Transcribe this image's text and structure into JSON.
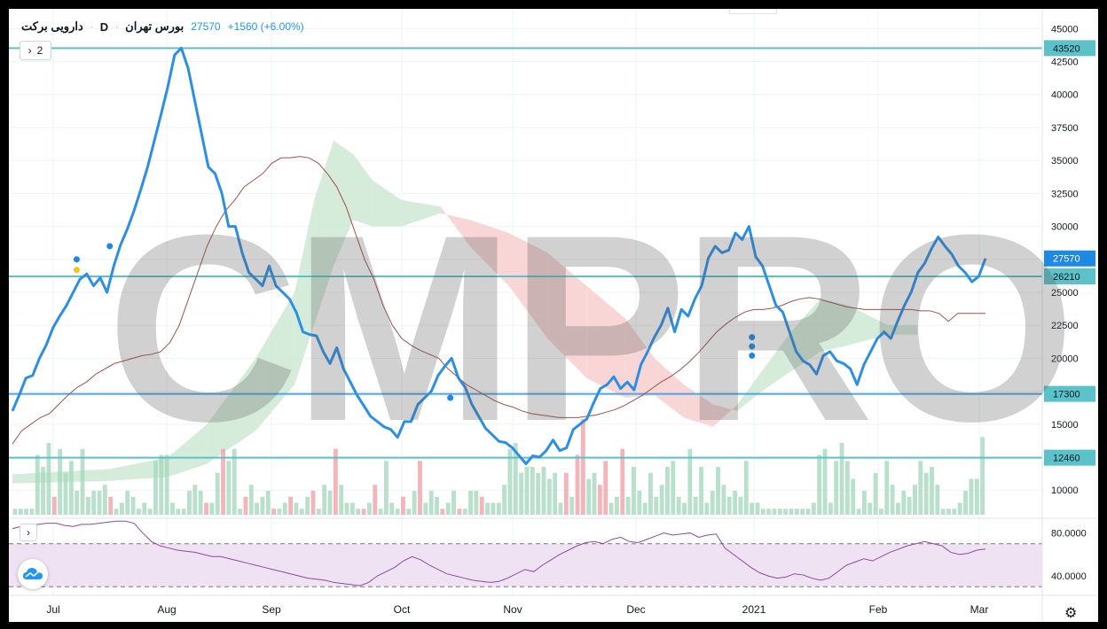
{
  "header": {
    "symbol": "دارویی برکت",
    "interval": "D",
    "exchange": "بورس تهران",
    "price": "27570",
    "change": "+1560 (+6.00%)"
  },
  "collapse_label": "2",
  "watermark": "CMPRO",
  "icons": {
    "collapse": "chevron-right-icon",
    "rsi_toggle": "chevron-right-icon",
    "settings": "gear-icon",
    "logo": "cloud-chart-icon"
  },
  "colors": {
    "price_line": "#2b8fe6",
    "base_line": "#a0524a",
    "cloud_bull": "#cfe9d4",
    "cloud_bear": "#f8cfcf",
    "volume_up": "#a6d8be",
    "volume_down": "#f0a3a8",
    "hline": "#5bc2c9",
    "hline_blue": "#4aa6e8",
    "rsi_line": "#8e4aa0",
    "rsi_band": "#efe3f3",
    "marker_blue": "#1e88e5",
    "marker_yellow": "#f5c518"
  },
  "chart_data": [
    {
      "type": "line",
      "name": "price",
      "ylim": [
        8000,
        46500
      ],
      "y_ticks": [
        10000,
        12500,
        15000,
        17500,
        20000,
        22500,
        25000,
        27500,
        30000,
        32500,
        35000,
        37500,
        40000,
        42500,
        45000
      ],
      "x_ticks": [
        "Jul",
        "Aug",
        "Sep",
        "Oct",
        "Nov",
        "Dec",
        "2021",
        "Feb",
        "Mar"
      ],
      "price_labels": [
        {
          "value": 43520,
          "label": "43520"
        },
        {
          "value": 27570,
          "label": "27570"
        },
        {
          "value": 26210,
          "label": "26210"
        },
        {
          "value": 17300,
          "label": "17300"
        },
        {
          "value": 12460,
          "label": "12460"
        }
      ],
      "horizontal_levels": [
        43520,
        26210,
        17300,
        12460
      ],
      "series": [
        {
          "values": [
            16000,
            17200,
            18500,
            18700,
            20000,
            21000,
            22300,
            23200,
            24000,
            25000,
            26000,
            26400,
            25500,
            26100,
            25000,
            27000,
            28600,
            29800,
            31200,
            32800,
            34500,
            36500,
            38500,
            40600,
            43000,
            43520,
            42000,
            39500,
            37000,
            34500,
            34000,
            32500,
            30000,
            30000,
            28000,
            26500,
            26000,
            25500,
            27000,
            25500,
            25000,
            24500,
            23500,
            22000,
            21800,
            21700,
            20500,
            19600,
            20800,
            19200,
            18200,
            17200,
            16400,
            15600,
            15200,
            14800,
            14600,
            14000,
            15200,
            15200,
            16500,
            17000,
            17500,
            18700,
            19400,
            20000,
            18500,
            17800,
            16500,
            15600,
            14700,
            14200,
            13700,
            13600,
            13200,
            12600,
            12000,
            12600,
            12500,
            13000,
            13800,
            13000,
            13200,
            14600,
            15000,
            15400,
            16600,
            17700,
            18000,
            18600,
            17700,
            18200,
            17600,
            19500,
            20500,
            21600,
            22500,
            23800,
            22000,
            23700,
            23200,
            24500,
            25500,
            27600,
            28500,
            28000,
            28200,
            29500,
            29000,
            30000,
            27700,
            27000,
            25500,
            24000,
            23500,
            22000,
            20500,
            19800,
            19500,
            18800,
            20200,
            20500,
            19800,
            19600,
            19200,
            18000,
            19500,
            20500,
            21500,
            22000,
            21500,
            22800,
            24000,
            25000,
            26500,
            27200,
            28300,
            29200,
            28500,
            27900,
            27000,
            26500,
            25800,
            26210,
            27570
          ]
        },
        {
          "name": "",
          "values": [
            13500,
            14500,
            15000,
            15500,
            15800,
            16500,
            17200,
            17800,
            18200,
            18800,
            19200,
            19600,
            19800,
            20000,
            20200,
            20300,
            20500,
            21200,
            22500,
            24500,
            26500,
            28500,
            30000,
            31200,
            32000,
            33000,
            33500,
            34000,
            34800,
            35200,
            35200,
            35300,
            35200,
            34800,
            34000,
            33000,
            31500,
            29500,
            27500,
            26000,
            24000,
            22500,
            21500,
            21000,
            20600,
            20300,
            20000,
            19200,
            18600,
            18000,
            17600,
            17200,
            16800,
            16500,
            16300,
            16000,
            15800,
            15700,
            15600,
            15500,
            15500,
            15500,
            15600,
            15700,
            15900,
            16100,
            16400,
            16800,
            17200,
            17700,
            18200,
            18600,
            19100,
            19700,
            20400,
            21200,
            22000,
            22600,
            23100,
            23500,
            23700,
            23700,
            23800,
            24000,
            24300,
            24500,
            24600,
            24500,
            24300,
            24100,
            23900,
            23800,
            23700,
            23700,
            23700,
            23700,
            23700,
            23700,
            23600,
            23600,
            23400,
            22800,
            23400,
            23400,
            23400,
            23400
          ]
        }
      ],
      "cloud": [
        {
          "t": 0.0,
          "a": 11200,
          "b": 10500
        },
        {
          "t": 0.1,
          "a": 11600,
          "b": 10700
        },
        {
          "t": 0.16,
          "a": 12500,
          "b": 11000
        },
        {
          "t": 0.2,
          "a": 15000,
          "b": 12000
        },
        {
          "t": 0.25,
          "a": 20000,
          "b": 14500
        },
        {
          "t": 0.29,
          "a": 25000,
          "b": 18000
        },
        {
          "t": 0.31,
          "a": 32000,
          "b": 22500
        },
        {
          "t": 0.33,
          "a": 36500,
          "b": 27000
        },
        {
          "t": 0.35,
          "a": 35500,
          "b": 30500
        },
        {
          "t": 0.37,
          "a": 33500,
          "b": 30000
        },
        {
          "t": 0.4,
          "a": 32000,
          "b": 30000
        },
        {
          "t": 0.44,
          "a": 31500,
          "b": 31000
        },
        {
          "t": 0.47,
          "a": 28500,
          "b": 30500
        },
        {
          "t": 0.51,
          "a": 25500,
          "b": 29500
        },
        {
          "t": 0.55,
          "a": 21500,
          "b": 28000
        },
        {
          "t": 0.59,
          "a": 18500,
          "b": 25500
        },
        {
          "t": 0.63,
          "a": 17000,
          "b": 23000
        },
        {
          "t": 0.66,
          "a": 17200,
          "b": 20000
        },
        {
          "t": 0.69,
          "a": 15500,
          "b": 18000
        },
        {
          "t": 0.72,
          "a": 14800,
          "b": 16500
        },
        {
          "t": 0.745,
          "a": 16500,
          "b": 16000
        },
        {
          "t": 0.77,
          "a": 19000,
          "b": 17500
        },
        {
          "t": 0.8,
          "a": 22000,
          "b": 19000
        },
        {
          "t": 0.83,
          "a": 24500,
          "b": 20500
        },
        {
          "t": 0.86,
          "a": 24000,
          "b": 21000
        },
        {
          "t": 0.9,
          "a": 22500,
          "b": 21800
        },
        {
          "t": 0.93,
          "a": 22500,
          "b": 21800
        }
      ],
      "markers": [
        {
          "t": 0.066,
          "value": 27500,
          "color": "blue"
        },
        {
          "t": 0.066,
          "value": 26700,
          "color": "yellow"
        },
        {
          "t": 0.1,
          "value": 28500,
          "color": "blue"
        },
        {
          "t": 0.45,
          "value": 17000,
          "color": "blue"
        },
        {
          "t": 0.76,
          "value": 21600,
          "color": "blue"
        },
        {
          "t": 0.76,
          "value": 20900,
          "color": "blue"
        },
        {
          "t": 0.76,
          "value": 20200,
          "color": "blue"
        }
      ]
    },
    {
      "type": "bar",
      "name": "volume",
      "values": [
        1,
        1,
        1,
        1,
        10,
        8,
        12,
        3,
        11,
        7,
        9,
        4,
        11,
        3,
        4,
        4,
        5,
        3,
        1,
        2,
        4,
        3,
        1,
        2,
        1,
        9,
        10,
        10,
        2,
        1,
        1,
        4,
        5,
        4,
        2,
        2,
        7,
        11,
        9,
        11,
        1,
        3,
        5,
        2,
        3,
        4,
        1,
        1,
        2,
        3,
        2,
        1,
        3,
        4,
        1,
        5,
        4,
        11,
        5,
        2,
        2,
        1,
        1,
        2,
        5,
        1,
        9,
        2,
        1,
        3,
        1,
        4,
        9,
        2,
        4,
        3,
        1,
        2,
        4,
        1,
        1,
        4,
        4,
        3,
        2,
        2,
        2,
        5,
        11,
        12,
        7,
        8,
        8,
        7,
        8,
        6,
        7,
        2,
        7,
        3,
        10,
        16,
        6,
        7,
        5,
        9,
        2,
        3,
        11,
        3,
        8,
        4,
        2,
        7,
        3,
        5,
        8,
        9,
        3,
        2,
        11,
        3,
        8,
        2,
        4,
        8,
        5,
        3,
        4,
        3,
        9,
        2,
        2,
        1,
        1,
        1,
        1,
        1,
        1,
        1,
        1,
        1,
        2,
        10,
        11,
        2,
        9,
        12,
        9,
        6,
        1,
        4,
        2,
        7,
        1,
        9,
        5,
        2,
        4,
        3,
        5,
        9,
        7,
        8,
        5,
        1,
        1,
        1,
        2,
        4,
        6,
        6,
        13
      ],
      "up": [
        1,
        1,
        1,
        1,
        1,
        1,
        1,
        0,
        1,
        1,
        1,
        1,
        1,
        1,
        1,
        1,
        1,
        0,
        1,
        1,
        1,
        1,
        1,
        1,
        1,
        1,
        1,
        1,
        1,
        1,
        1,
        1,
        1,
        1,
        0,
        1,
        1,
        0,
        1,
        1,
        1,
        0,
        1,
        1,
        1,
        1,
        0,
        1,
        1,
        0,
        1,
        1,
        1,
        0,
        1,
        1,
        1,
        0,
        1,
        1,
        1,
        1,
        0,
        1,
        0,
        1,
        1,
        1,
        1,
        0,
        1,
        1,
        0,
        1,
        1,
        1,
        0,
        1,
        1,
        0,
        1,
        1,
        1,
        0,
        1,
        1,
        1,
        1,
        1,
        1,
        1,
        1,
        1,
        1,
        1,
        1,
        1,
        1,
        0,
        1,
        0,
        0,
        1,
        1,
        0,
        0,
        1,
        1,
        0,
        1,
        1,
        1,
        1,
        1,
        1,
        1,
        1,
        1,
        1,
        1,
        1,
        1,
        1,
        1,
        1,
        1,
        1,
        1,
        1,
        1,
        1,
        1,
        1,
        1,
        1,
        1,
        1,
        1,
        1,
        1,
        1,
        1,
        1,
        1,
        1,
        1,
        1,
        1,
        1,
        1,
        1,
        1,
        1,
        1,
        1,
        1,
        1,
        1,
        1,
        1,
        1,
        1,
        1,
        1,
        1,
        1,
        1,
        1,
        1,
        1,
        1,
        1,
        1
      ]
    },
    {
      "type": "line",
      "name": "RSI",
      "ylim": [
        22,
        92
      ],
      "y_ticks": [
        40.0,
        80.0
      ],
      "y_tick_labels": [
        "40.0000",
        "80.0000"
      ],
      "band": [
        30,
        70
      ],
      "values": [
        84,
        86,
        87,
        88,
        89,
        89,
        87,
        86,
        88,
        88,
        89,
        90,
        91,
        91,
        89,
        80,
        72,
        68,
        66,
        64,
        63,
        62,
        60,
        58,
        58,
        56,
        54,
        52,
        50,
        48,
        46,
        44,
        42,
        40,
        38,
        37,
        36,
        34,
        33,
        32,
        31,
        34,
        40,
        44,
        48,
        54,
        58,
        55,
        50,
        46,
        42,
        40,
        38,
        36,
        35,
        34,
        35,
        38,
        42,
        46,
        44,
        50,
        55,
        60,
        64,
        68,
        71,
        72,
        70,
        74,
        76,
        72,
        71,
        74,
        77,
        80,
        78,
        79,
        80,
        76,
        78,
        79,
        66,
        60,
        54,
        48,
        43,
        40,
        38,
        39,
        42,
        41,
        38,
        36,
        38,
        44,
        50,
        53,
        56,
        54,
        58,
        62,
        65,
        68,
        70,
        72,
        70,
        68,
        62,
        60,
        61,
        64,
        65
      ]
    }
  ]
}
